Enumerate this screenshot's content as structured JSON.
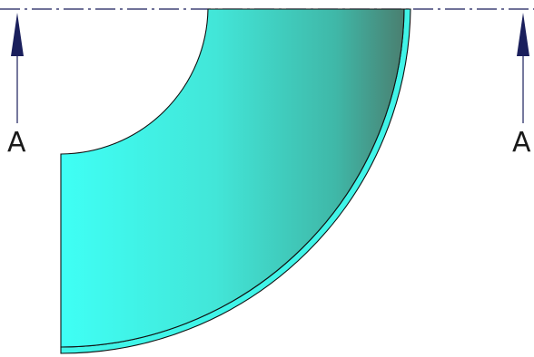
{
  "section": {
    "left_label": "A",
    "right_label": "A",
    "arrow_direction": "up",
    "arrow_color": "#1a1f5c",
    "line_color": "#1a1f5c"
  },
  "part": {
    "shape": "quarter-elbow",
    "fill_light": "#3ffff0",
    "fill_mid": "#44d0c0",
    "fill_dark": "#4a8a7a",
    "rim_color": "#40f4e8",
    "outline_color": "#111111"
  }
}
